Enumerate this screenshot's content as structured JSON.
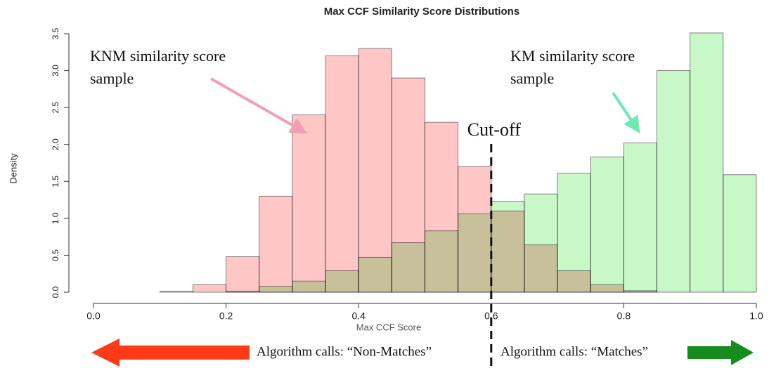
{
  "chart_data": {
    "type": "histogram",
    "title": "Max CCF Similarity Score Distributions",
    "x_label": "Max CCF Score",
    "y_label": "Density",
    "bins": [
      0.05,
      0.1,
      0.15,
      0.2,
      0.25,
      0.3,
      0.35,
      0.4,
      0.45,
      0.5,
      0.55,
      0.6,
      0.65,
      0.7,
      0.75,
      0.8,
      0.85,
      0.9,
      0.95,
      1.0
    ],
    "series": [
      {
        "name": "KNM similarity score sample",
        "color": "#ffc6c6",
        "values": [
          0.0,
          0.01,
          0.1,
          0.48,
          1.3,
          2.4,
          3.2,
          3.3,
          2.9,
          2.3,
          1.7,
          1.1,
          0.64,
          0.29,
          0.1,
          0.02,
          0,
          0,
          0
        ]
      },
      {
        "name": "KM similarity score sample",
        "color": "#c8f7c8",
        "values": [
          0,
          0,
          0,
          0.01,
          0.08,
          0.15,
          0.29,
          0.47,
          0.67,
          0.83,
          1.06,
          1.23,
          1.33,
          1.61,
          1.83,
          2.02,
          3.0,
          3.51,
          1.59
        ]
      }
    ],
    "xlim": [
      0,
      1
    ],
    "xticks": [
      {
        "value": 0,
        "label": "0.0"
      },
      0.2,
      0.4,
      0.6,
      0.8,
      {
        "value": 1,
        "label": "1.0"
      }
    ],
    "ylim": [
      0,
      3.5
    ],
    "yticks": [
      {
        "value": 0,
        "label": "0.0"
      },
      0.5,
      {
        "value": 1,
        "label": "1.0"
      },
      1.5,
      {
        "value": 2,
        "label": "2.0"
      },
      2.5,
      {
        "value": 3,
        "label": "3.0"
      },
      3.5
    ],
    "cutoff": 0.6,
    "cutoff_label": "Cut-off",
    "left_call": "Algorithm calls: “Non-Matches”",
    "right_call": "Algorithm calls: “Matches”"
  }
}
